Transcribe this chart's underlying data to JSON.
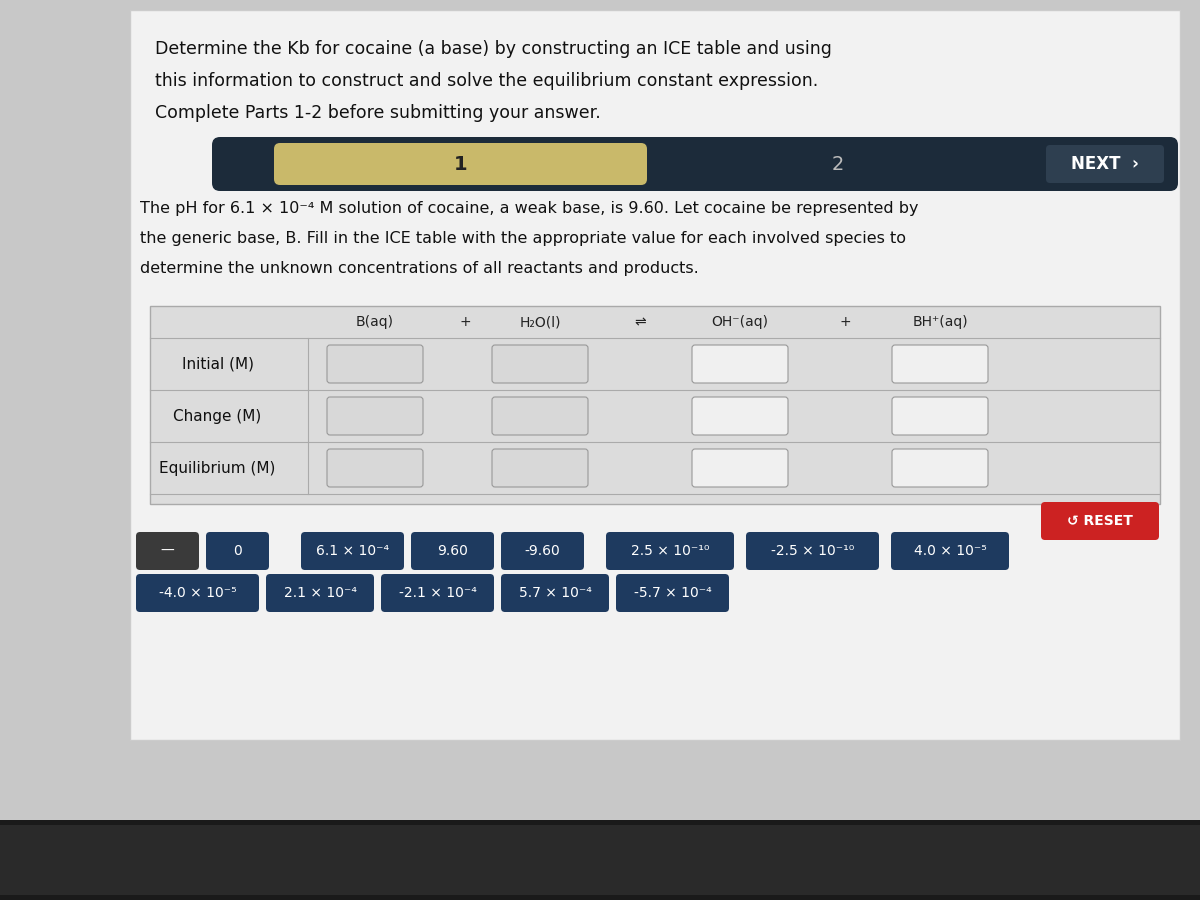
{
  "bg_outer": "#b0b0b0",
  "bg_screen": "#c8c8c8",
  "bg_content": "#e8e8e8",
  "title_lines": [
    "Determine the Kb for cocaine (a base) by constructing an ICE table and using",
    "this information to construct and solve the equilibrium constant expression.",
    "Complete Parts 1-2 before submitting your answer."
  ],
  "nav_bar_color": "#1c2b3a",
  "nav_bar_active_color": "#c9b96a",
  "nav_label_1": "1",
  "nav_label_2": "2",
  "nav_next": "NEXT",
  "description_lines": [
    "The pH for 6.1 × 10⁻⁴ M solution of cocaine, a weak base, is 9.60. Let cocaine be represented by",
    "the generic base, B. Fill in the ICE table with the appropriate value for each involved species to",
    "determine the unknown concentrations of all reactants and products."
  ],
  "row_labels": [
    "Initial (M)",
    "Change (M)",
    "Equilibrium (M)"
  ],
  "token_bg": "#1e3a5f",
  "token_text": "#ffffff",
  "token_bg_dark": "#3a3a3a",
  "reset_bg": "#cc2222",
  "reset_text": "#ffffff",
  "reset_label": "↺ RESET",
  "answer_tokens_row1": [
    "—",
    "0",
    "6.1 × 10⁻⁴",
    "9.60",
    "-9.60",
    "2.5 × 10⁻¹⁰",
    "-2.5 × 10⁻¹⁰",
    "4.0 × 10⁻⁵"
  ],
  "answer_tokens_row2": [
    "-4.0 × 10⁻⁵",
    "2.1 × 10⁻⁴",
    "-2.1 × 10⁻⁴",
    "5.7 × 10⁻⁴",
    "-5.7 × 10⁻⁴"
  ],
  "dock_color": "#888888",
  "taskbar_color": "#222222"
}
